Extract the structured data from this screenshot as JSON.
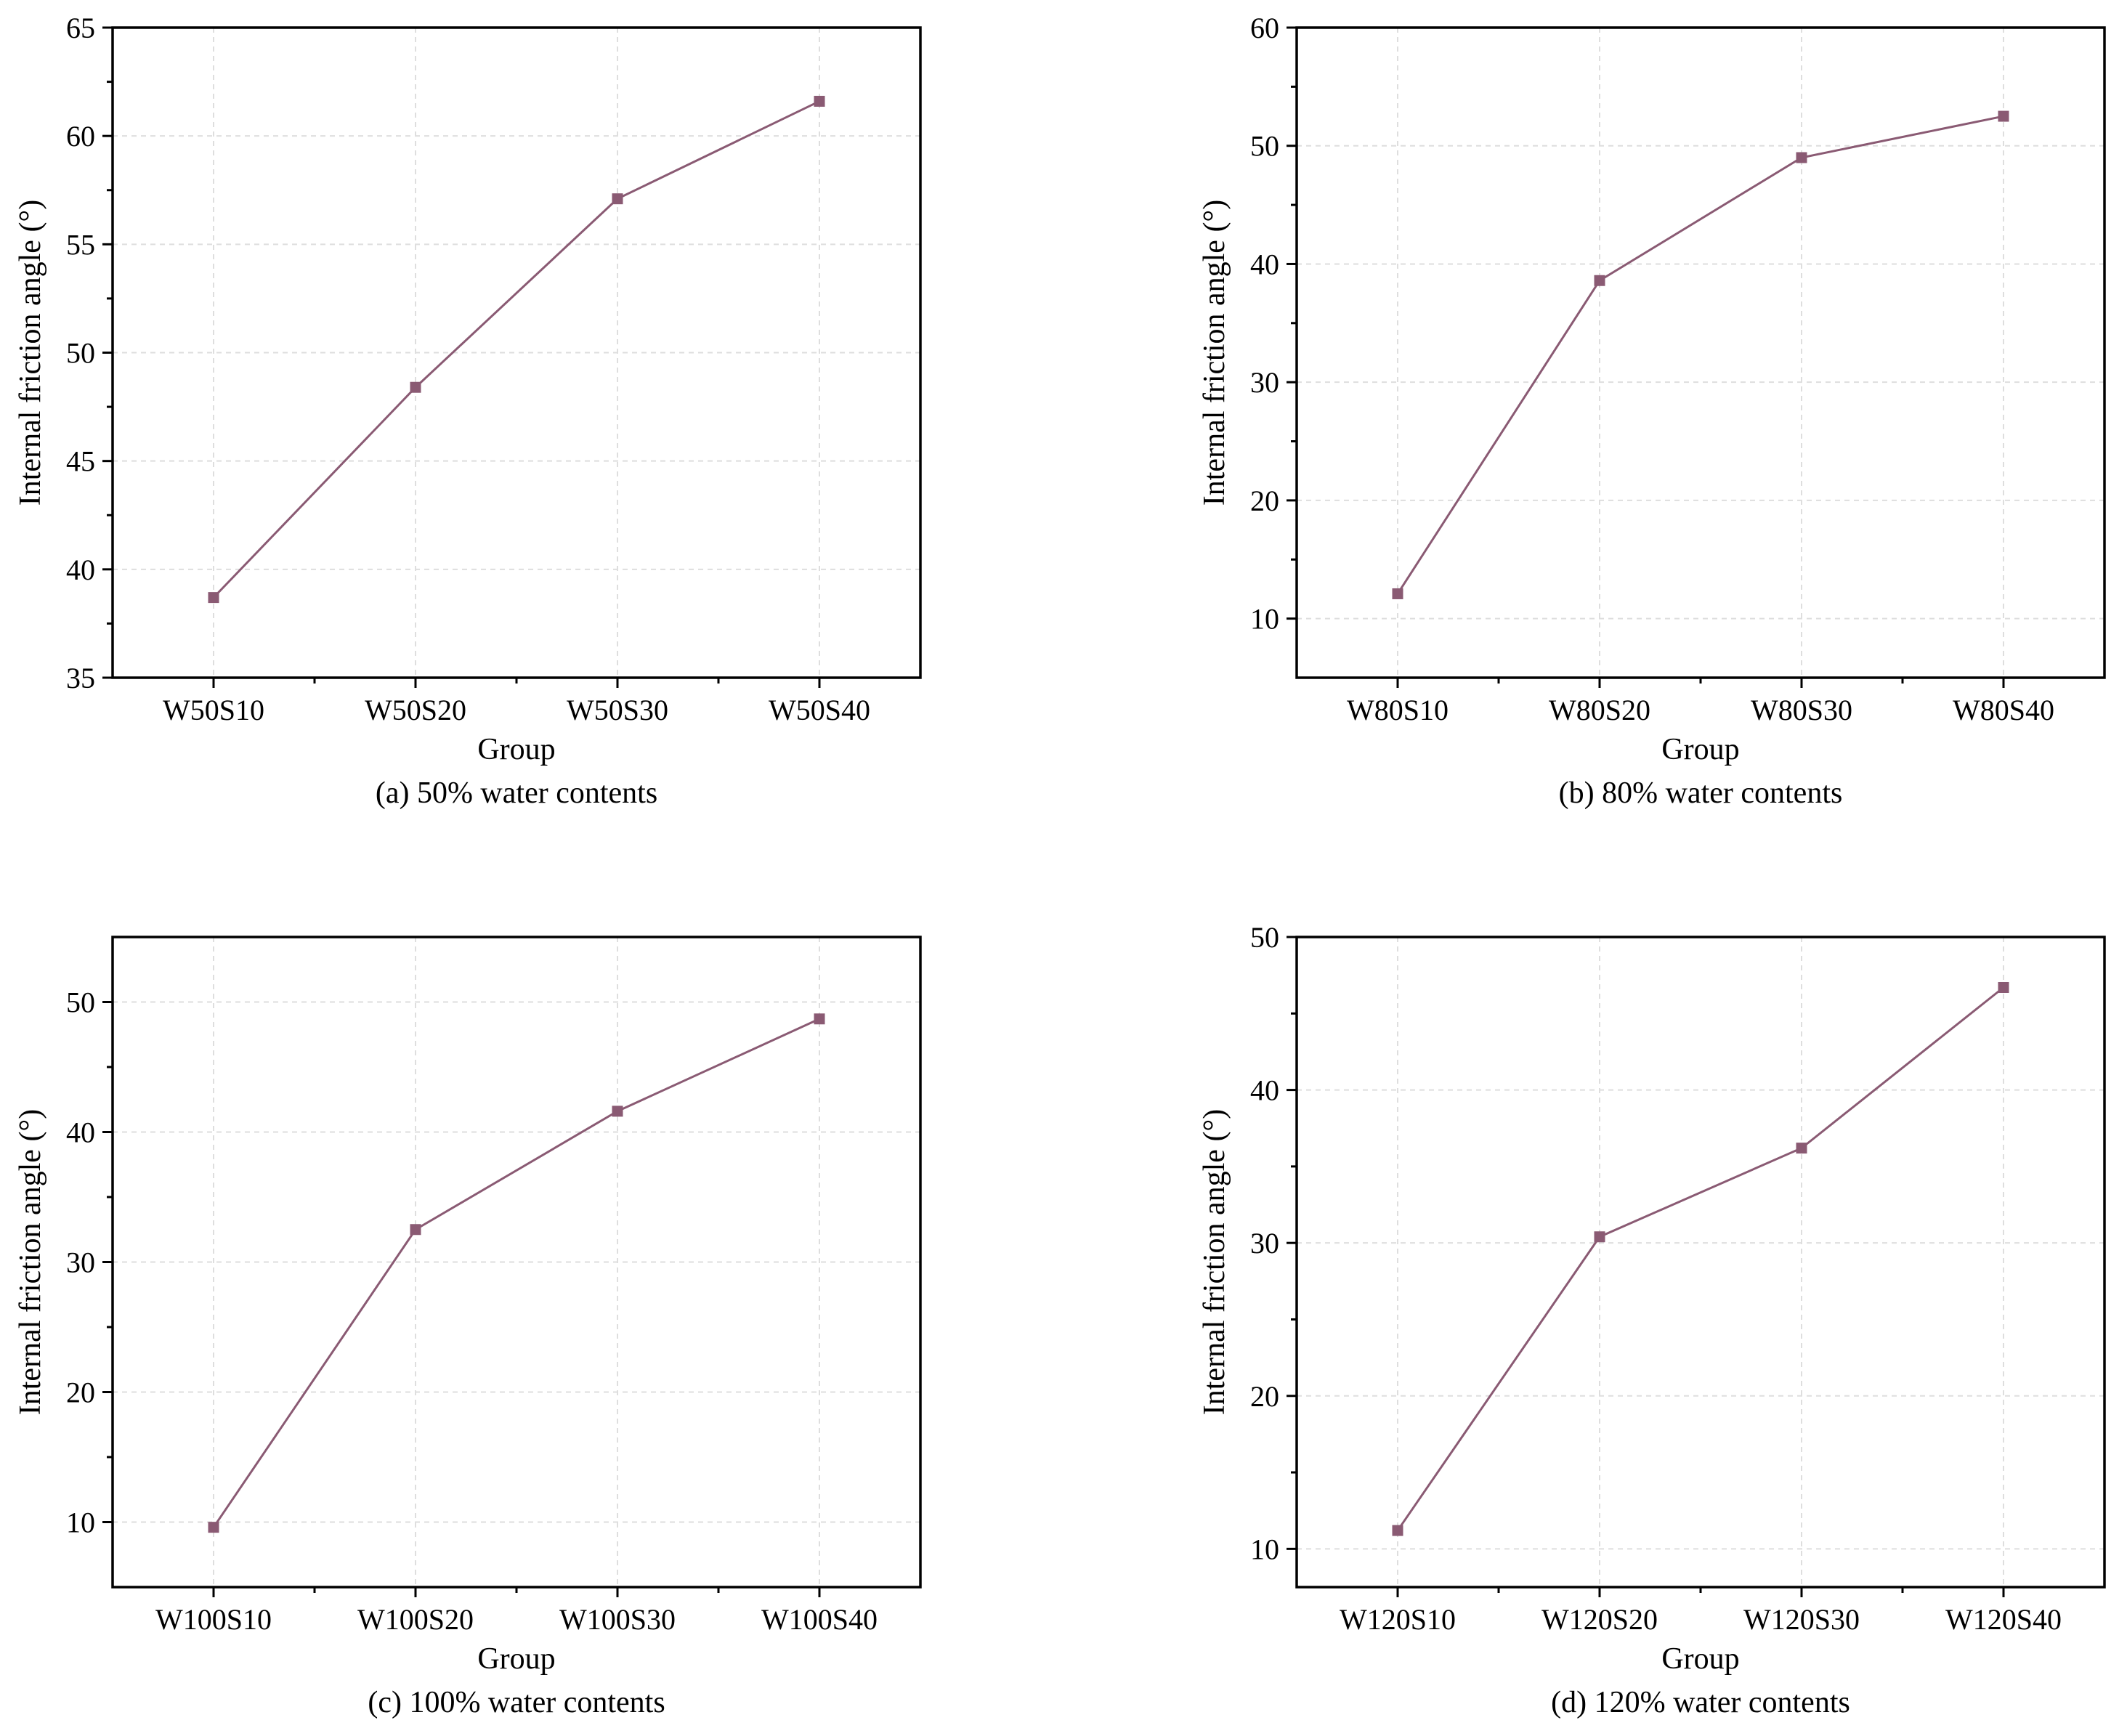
{
  "colors": {
    "series": "#8a5a73",
    "marker": "#8a5a73",
    "frame": "#000000",
    "grid": "#dedede"
  },
  "chart_data": [
    {
      "type": "line",
      "caption": "(a) 50% water contents",
      "xlabel": "Group",
      "ylabel": "Internal friction angle (°)",
      "categories": [
        "W50S10",
        "W50S20",
        "W50S30",
        "W50S40"
      ],
      "values": [
        38.7,
        48.4,
        57.1,
        61.6
      ],
      "ylim": [
        35,
        65
      ],
      "yticks": [
        35,
        40,
        45,
        50,
        55,
        60,
        65
      ],
      "grid": true,
      "marker": "square"
    },
    {
      "type": "line",
      "caption": "(b) 80% water contents",
      "xlabel": "Group",
      "ylabel": "Internal friction angle (°)",
      "categories": [
        "W80S10",
        "W80S20",
        "W80S30",
        "W80S40"
      ],
      "values": [
        12.1,
        38.6,
        49.0,
        52.5
      ],
      "ylim": [
        5,
        60
      ],
      "yticks": [
        10,
        20,
        30,
        40,
        50,
        60
      ],
      "grid": true,
      "marker": "square"
    },
    {
      "type": "line",
      "caption": "(c) 100% water contents",
      "xlabel": "Group",
      "ylabel": "Internal friction angle (°)",
      "categories": [
        "W100S10",
        "W100S20",
        "W100S30",
        "W100S40"
      ],
      "values": [
        9.6,
        32.5,
        41.6,
        48.7
      ],
      "ylim": [
        5,
        55
      ],
      "yticks": [
        10,
        20,
        30,
        40,
        50
      ],
      "grid": true,
      "marker": "square"
    },
    {
      "type": "line",
      "caption": "(d) 120% water contents",
      "xlabel": "Group",
      "ylabel": "Internal friction angle (°)",
      "categories": [
        "W120S10",
        "W120S20",
        "W120S30",
        "W120S40"
      ],
      "values": [
        11.2,
        30.4,
        36.2,
        46.7
      ],
      "ylim": [
        7.5,
        50
      ],
      "yticks": [
        10,
        20,
        30,
        40,
        50
      ],
      "grid": true,
      "marker": "square"
    }
  ]
}
